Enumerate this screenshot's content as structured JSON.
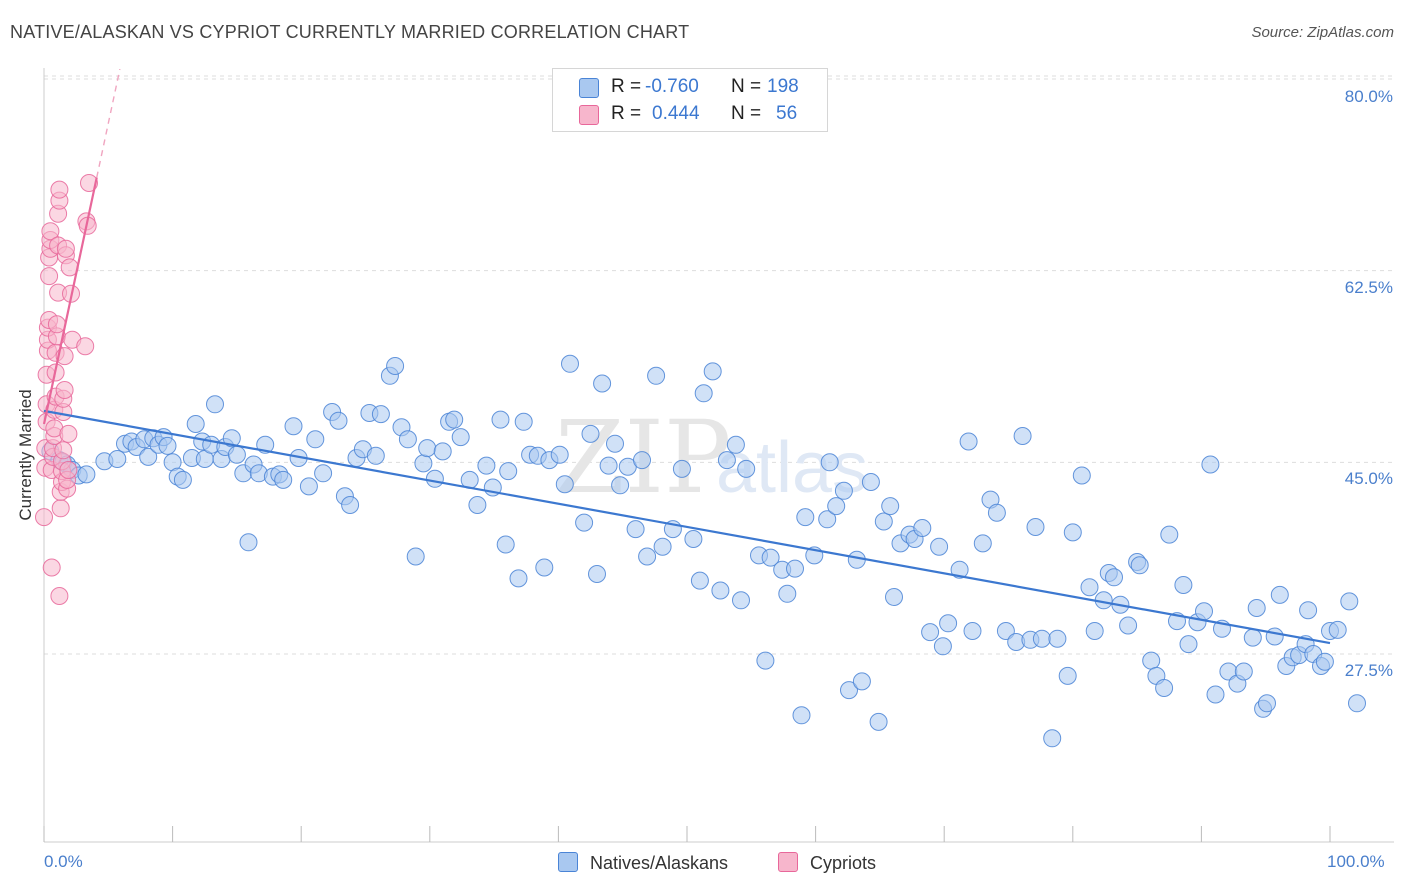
{
  "header": {
    "title": "NATIVE/ALASKAN VS CYPRIOT CURRENTLY MARRIED CORRELATION CHART",
    "source": "Source: ZipAtlas.com"
  },
  "colors": {
    "blue": "#4a84d6",
    "blue_fill": "#a9c8f0",
    "pink": "#e8679a",
    "pink_fill": "#f7b6cc",
    "grid": "#dddddd",
    "tick_label": "#4a7fcc"
  },
  "legend": {
    "rows": [
      {
        "r_label": "R =",
        "r_value": "-0.760",
        "n_label": "N =",
        "n_value": "198"
      },
      {
        "r_label": "R =",
        "r_value": "0.444",
        "n_label": "N =",
        "n_value": "56"
      }
    ]
  },
  "watermark": {
    "zip": "ZIP",
    "atlas": "atlas"
  },
  "chart_data": {
    "type": "scatter",
    "title": "NATIVE/ALASKAN VS CYPRIOT CURRENTLY MARRIED CORRELATION CHART",
    "xlabel": "",
    "ylabel": "Currently Married",
    "xlim": [
      0,
      100
    ],
    "ylim": [
      10,
      82
    ],
    "y_ticks": [
      27.5,
      45.0,
      62.5,
      80.0
    ],
    "y_tick_labels": [
      "27.5%",
      "45.0%",
      "62.5%",
      "80.0%"
    ],
    "x_tick_labels": [
      "0.0%",
      "100.0%"
    ],
    "grid": true,
    "legend_position": "top-center",
    "series": [
      {
        "name": "Natives/Alaskans",
        "r": -0.76,
        "n": 198,
        "trend": {
          "x": [
            0,
            100
          ],
          "y": [
            49.7,
            28.5
          ]
        },
        "points": [
          [
            0.5,
            46.0
          ],
          [
            1.2,
            45.2
          ],
          [
            1.5,
            45.0
          ],
          [
            1.8,
            44.8
          ],
          [
            2.2,
            44.3
          ],
          [
            2.7,
            43.8
          ],
          [
            3.3,
            43.9
          ],
          [
            4.7,
            45.1
          ],
          [
            5.7,
            45.3
          ],
          [
            6.3,
            46.7
          ],
          [
            6.8,
            46.9
          ],
          [
            7.2,
            46.4
          ],
          [
            7.8,
            47.1
          ],
          [
            8.1,
            45.5
          ],
          [
            8.5,
            47.2
          ],
          [
            8.9,
            46.6
          ],
          [
            9.3,
            47.3
          ],
          [
            9.6,
            46.5
          ],
          [
            10.0,
            45.0
          ],
          [
            10.4,
            43.7
          ],
          [
            10.8,
            43.4
          ],
          [
            11.5,
            45.4
          ],
          [
            11.8,
            48.5
          ],
          [
            12.3,
            46.9
          ],
          [
            12.5,
            45.3
          ],
          [
            13.0,
            46.6
          ],
          [
            13.3,
            50.3
          ],
          [
            13.8,
            45.3
          ],
          [
            14.1,
            46.4
          ],
          [
            14.6,
            47.2
          ],
          [
            15.0,
            45.7
          ],
          [
            15.5,
            44.0
          ],
          [
            15.9,
            37.7
          ],
          [
            16.3,
            44.8
          ],
          [
            16.7,
            44.0
          ],
          [
            17.2,
            46.6
          ],
          [
            17.8,
            43.7
          ],
          [
            18.3,
            43.9
          ],
          [
            18.6,
            43.4
          ],
          [
            19.4,
            48.3
          ],
          [
            19.8,
            45.4
          ],
          [
            20.6,
            42.8
          ],
          [
            21.1,
            47.1
          ],
          [
            21.7,
            44.0
          ],
          [
            22.4,
            49.6
          ],
          [
            22.9,
            48.8
          ],
          [
            23.4,
            41.9
          ],
          [
            23.8,
            41.1
          ],
          [
            24.3,
            45.4
          ],
          [
            24.8,
            46.2
          ],
          [
            25.3,
            49.5
          ],
          [
            25.8,
            45.6
          ],
          [
            26.2,
            49.4
          ],
          [
            26.9,
            52.9
          ],
          [
            27.3,
            53.8
          ],
          [
            27.8,
            48.2
          ],
          [
            28.3,
            47.1
          ],
          [
            28.9,
            36.4
          ],
          [
            29.5,
            44.9
          ],
          [
            29.8,
            46.3
          ],
          [
            30.4,
            43.5
          ],
          [
            31.0,
            46.0
          ],
          [
            31.5,
            48.7
          ],
          [
            31.9,
            48.9
          ],
          [
            32.4,
            47.3
          ],
          [
            33.1,
            43.4
          ],
          [
            33.7,
            41.1
          ],
          [
            34.4,
            44.7
          ],
          [
            34.9,
            42.7
          ],
          [
            35.5,
            48.9
          ],
          [
            35.9,
            37.5
          ],
          [
            36.1,
            44.2
          ],
          [
            36.9,
            34.4
          ],
          [
            37.3,
            48.7
          ],
          [
            37.8,
            45.7
          ],
          [
            38.4,
            45.6
          ],
          [
            38.9,
            35.4
          ],
          [
            39.3,
            45.2
          ],
          [
            40.1,
            45.7
          ],
          [
            40.5,
            43.0
          ],
          [
            40.9,
            54.0
          ],
          [
            42.0,
            39.5
          ],
          [
            42.5,
            47.6
          ],
          [
            43.0,
            34.8
          ],
          [
            43.4,
            52.2
          ],
          [
            43.9,
            44.7
          ],
          [
            44.4,
            46.7
          ],
          [
            44.8,
            42.9
          ],
          [
            45.4,
            44.6
          ],
          [
            46.0,
            38.9
          ],
          [
            46.5,
            45.2
          ],
          [
            46.9,
            36.4
          ],
          [
            47.6,
            52.9
          ],
          [
            48.1,
            37.3
          ],
          [
            48.9,
            38.9
          ],
          [
            49.6,
            44.4
          ],
          [
            50.5,
            38.0
          ],
          [
            51.0,
            34.2
          ],
          [
            51.3,
            51.3
          ],
          [
            52.0,
            53.3
          ],
          [
            52.6,
            33.3
          ],
          [
            53.1,
            45.2
          ],
          [
            53.8,
            46.6
          ],
          [
            54.2,
            32.4
          ],
          [
            54.6,
            44.4
          ],
          [
            55.6,
            36.5
          ],
          [
            56.1,
            26.9
          ],
          [
            56.5,
            36.3
          ],
          [
            57.4,
            35.2
          ],
          [
            57.8,
            33.0
          ],
          [
            58.4,
            35.3
          ],
          [
            58.9,
            21.9
          ],
          [
            59.2,
            40.0
          ],
          [
            59.9,
            36.5
          ],
          [
            60.9,
            39.8
          ],
          [
            61.1,
            45.0
          ],
          [
            61.6,
            41.0
          ],
          [
            62.2,
            42.4
          ],
          [
            62.6,
            24.2
          ],
          [
            63.2,
            36.1
          ],
          [
            63.6,
            25.0
          ],
          [
            64.3,
            43.2
          ],
          [
            64.9,
            21.3
          ],
          [
            65.3,
            39.6
          ],
          [
            65.8,
            41.0
          ],
          [
            66.1,
            32.7
          ],
          [
            66.6,
            37.6
          ],
          [
            67.3,
            38.4
          ],
          [
            67.7,
            38.0
          ],
          [
            68.3,
            39.0
          ],
          [
            68.9,
            29.5
          ],
          [
            69.6,
            37.3
          ],
          [
            69.9,
            28.2
          ],
          [
            70.3,
            30.3
          ],
          [
            71.2,
            35.2
          ],
          [
            71.9,
            46.9
          ],
          [
            72.2,
            29.6
          ],
          [
            73.0,
            37.6
          ],
          [
            73.6,
            41.6
          ],
          [
            74.1,
            40.4
          ],
          [
            74.8,
            29.6
          ],
          [
            75.6,
            28.6
          ],
          [
            76.1,
            47.4
          ],
          [
            76.7,
            28.8
          ],
          [
            77.1,
            39.1
          ],
          [
            77.6,
            28.9
          ],
          [
            78.4,
            19.8
          ],
          [
            78.8,
            28.9
          ],
          [
            79.6,
            25.5
          ],
          [
            80.0,
            38.6
          ],
          [
            80.7,
            43.8
          ],
          [
            81.3,
            33.6
          ],
          [
            81.7,
            29.6
          ],
          [
            82.4,
            32.4
          ],
          [
            82.8,
            34.9
          ],
          [
            83.2,
            34.5
          ],
          [
            83.7,
            32.0
          ],
          [
            84.3,
            30.1
          ],
          [
            85.0,
            35.9
          ],
          [
            85.2,
            35.6
          ],
          [
            86.1,
            26.9
          ],
          [
            86.5,
            25.5
          ],
          [
            87.1,
            24.4
          ],
          [
            87.5,
            38.4
          ],
          [
            88.1,
            30.5
          ],
          [
            88.6,
            33.8
          ],
          [
            89.0,
            28.4
          ],
          [
            89.7,
            30.4
          ],
          [
            90.2,
            31.4
          ],
          [
            90.7,
            44.8
          ],
          [
            91.1,
            23.8
          ],
          [
            91.6,
            29.8
          ],
          [
            92.1,
            25.9
          ],
          [
            92.8,
            24.8
          ],
          [
            93.3,
            25.9
          ],
          [
            94.0,
            29.0
          ],
          [
            94.3,
            31.7
          ],
          [
            94.8,
            22.5
          ],
          [
            95.1,
            23.0
          ],
          [
            95.7,
            29.1
          ],
          [
            96.1,
            32.9
          ],
          [
            96.6,
            26.4
          ],
          [
            97.1,
            27.2
          ],
          [
            97.6,
            27.4
          ],
          [
            98.1,
            28.4
          ],
          [
            98.3,
            31.5
          ],
          [
            98.7,
            27.5
          ],
          [
            99.3,
            26.4
          ],
          [
            99.6,
            26.8
          ],
          [
            100.0,
            29.6
          ],
          [
            100.6,
            29.7
          ],
          [
            101.5,
            32.3
          ],
          [
            102.1,
            23.0
          ]
        ]
      },
      {
        "name": "Cypriots",
        "r": 0.444,
        "n": 56,
        "trend": {
          "x": [
            0.0,
            4.1
          ],
          "y": [
            48.5,
            71.0
          ]
        },
        "trend_dashed": {
          "x": [
            4.1,
            5.9
          ],
          "y": [
            71.0,
            80.9
          ]
        },
        "points": [
          [
            0.0,
            40.0
          ],
          [
            0.1,
            44.5
          ],
          [
            0.1,
            46.3
          ],
          [
            0.2,
            48.7
          ],
          [
            0.2,
            50.3
          ],
          [
            0.2,
            53.0
          ],
          [
            0.3,
            55.2
          ],
          [
            0.3,
            56.2
          ],
          [
            0.3,
            57.3
          ],
          [
            0.4,
            58.0
          ],
          [
            0.4,
            62.0
          ],
          [
            0.4,
            63.7
          ],
          [
            0.5,
            64.5
          ],
          [
            0.5,
            65.3
          ],
          [
            0.5,
            66.1
          ],
          [
            0.6,
            35.4
          ],
          [
            0.6,
            44.3
          ],
          [
            0.7,
            45.5
          ],
          [
            0.7,
            46.3
          ],
          [
            0.8,
            47.4
          ],
          [
            0.8,
            48.1
          ],
          [
            0.8,
            49.8
          ],
          [
            0.9,
            51.0
          ],
          [
            0.9,
            53.2
          ],
          [
            0.9,
            55.0
          ],
          [
            1.0,
            56.5
          ],
          [
            1.0,
            57.6
          ],
          [
            1.1,
            60.5
          ],
          [
            1.1,
            64.8
          ],
          [
            1.1,
            67.7
          ],
          [
            1.2,
            68.9
          ],
          [
            1.2,
            69.9
          ],
          [
            1.2,
            32.8
          ],
          [
            1.3,
            40.8
          ],
          [
            1.3,
            42.3
          ],
          [
            1.4,
            43.2
          ],
          [
            1.4,
            44.2
          ],
          [
            1.4,
            45.1
          ],
          [
            1.5,
            46.1
          ],
          [
            1.5,
            49.6
          ],
          [
            1.5,
            50.8
          ],
          [
            1.6,
            51.6
          ],
          [
            1.6,
            54.7
          ],
          [
            1.7,
            63.9
          ],
          [
            1.7,
            64.5
          ],
          [
            1.8,
            42.6
          ],
          [
            1.8,
            43.4
          ],
          [
            1.9,
            44.3
          ],
          [
            1.9,
            47.6
          ],
          [
            2.0,
            62.8
          ],
          [
            2.1,
            60.4
          ],
          [
            2.2,
            56.2
          ],
          [
            3.2,
            55.6
          ],
          [
            3.3,
            67.0
          ],
          [
            3.4,
            66.6
          ],
          [
            3.5,
            70.5
          ]
        ]
      }
    ]
  },
  "bottom_legend": {
    "items": [
      {
        "label": "Natives/Alaskans"
      },
      {
        "label": "Cypriots"
      }
    ]
  }
}
